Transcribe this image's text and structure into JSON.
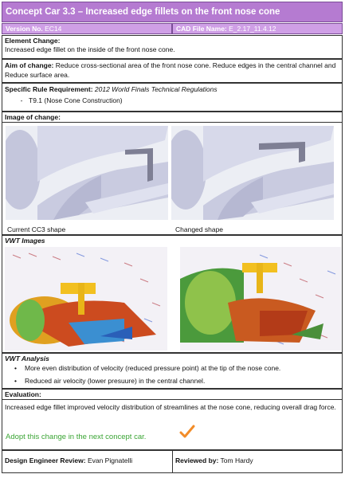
{
  "header": {
    "title": "Concept Car 3.3 – Increased edge fillets on the front nose cone",
    "version_label": "Version No.",
    "version_value": "EC14",
    "cad_label": "CAD File Name:",
    "cad_value": "E_2.17_11.4.12"
  },
  "element_change": {
    "label": "Element Change:",
    "text": "Increased edge fillet on the inside of the front nose cone."
  },
  "aim": {
    "label": "Aim of change:",
    "text": "Reduce cross-sectional area of the front nose cone.  Reduce edges in the central channel and Reduce surface area."
  },
  "rule": {
    "label": "Specific Rule Requirement:",
    "value": "2012 World Finals Technical Regulations",
    "dash": "-",
    "item": "T9.1 (Nose Cone Construction)"
  },
  "image_of_change": {
    "label": "Image of change:",
    "left_caption": "Current CC3 shape",
    "right_caption": "Changed shape"
  },
  "vwt_images": {
    "label": "VWT Images"
  },
  "vwt_analysis": {
    "label": "VWT Analysis",
    "bullets": [
      "More even distribution of velocity (reduced pressure point) at the tip of the nose cone.",
      "Reduced air velocity (lower presuure) in the central channel."
    ]
  },
  "evaluation": {
    "label": "Evaluation:",
    "text": "Increased edge fillet improved velocity distribution of streamlines at the nose cone, reducing overall drag force.",
    "adopt": "Adopt this change in the next concept car."
  },
  "footer": {
    "designer_label": "Design Engineer Review:",
    "designer_name": "Evan Pignatelli",
    "reviewer_label": "Reviewed by:",
    "reviewer_name": "Tom Hardy"
  },
  "colors": {
    "header": "#b57bd1",
    "subheader": "#cf9fe6",
    "adopt": "#3ba535",
    "check": "#f28c28"
  },
  "icons": {
    "approval": "checkmark-icon"
  }
}
